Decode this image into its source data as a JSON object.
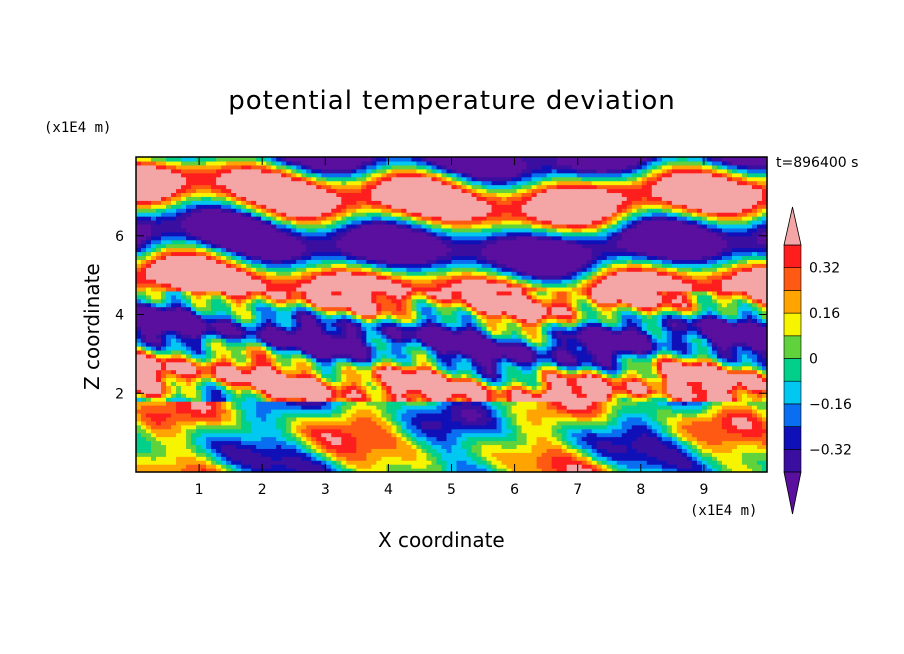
{
  "chart_data": {
    "type": "heatmap",
    "title": "potential temperature deviation",
    "xlabel": "X coordinate",
    "ylabel": "Z coordinate",
    "x_unit": "(x1E4 m)",
    "y_unit": "(x1E4 m)",
    "time_label": "t=896400 s",
    "x_ticks": [
      1,
      2,
      3,
      4,
      5,
      6,
      7,
      8,
      9
    ],
    "y_ticks": [
      2,
      4,
      6
    ],
    "xlim": [
      0,
      10
    ],
    "ylim": [
      0,
      8
    ],
    "colorbar": {
      "levels": [
        -0.4,
        -0.32,
        -0.24,
        -0.16,
        -0.08,
        0,
        0.08,
        0.16,
        0.24,
        0.32,
        0.4
      ],
      "tick_labels": [
        "0.32",
        "0.16",
        "0",
        "−0.16",
        "−0.32"
      ],
      "tick_values": [
        0.32,
        0.16,
        0,
        -0.16,
        -0.32
      ],
      "colors_low_to_high": [
        "#5a0f9e",
        "#3a0fa0",
        "#1010b8",
        "#0a6ef0",
        "#00c8f0",
        "#00d08a",
        "#5fd23c",
        "#f7f400",
        "#ffa400",
        "#ff5a14",
        "#ff1e1e",
        "#f4a5a5"
      ],
      "extend": "both"
    }
  }
}
